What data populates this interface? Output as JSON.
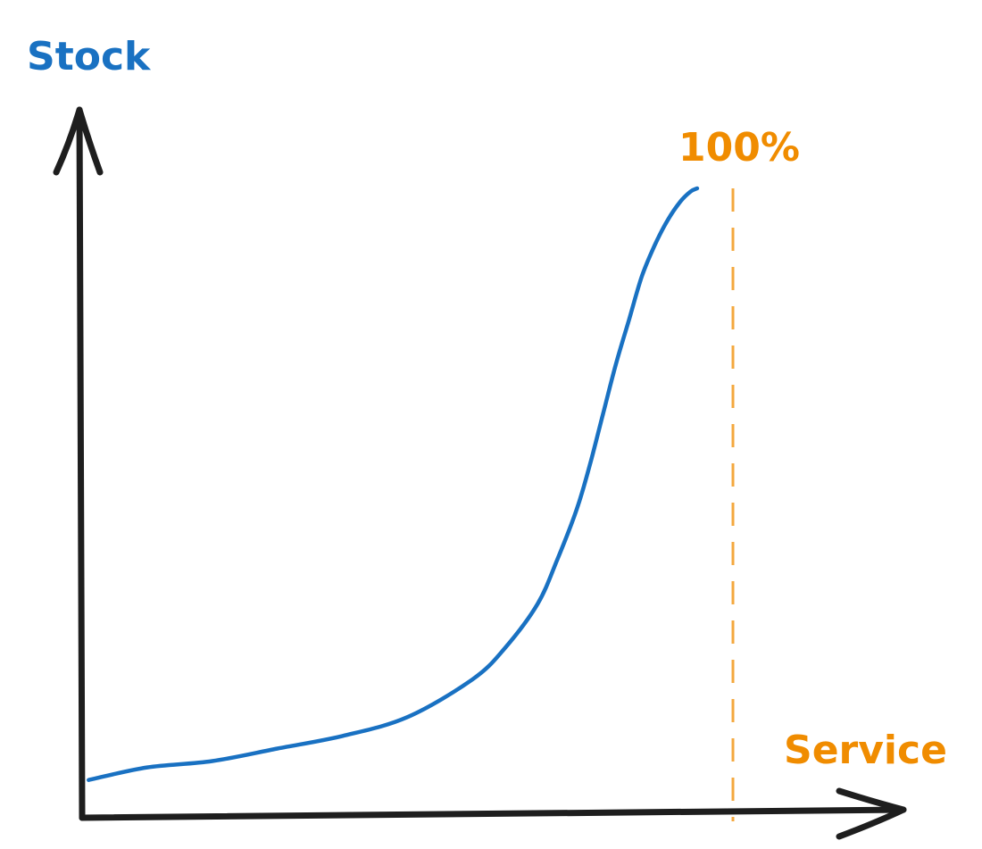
{
  "chart_data": {
    "type": "line",
    "title": "",
    "xlabel": "Service",
    "ylabel": "Stock",
    "xlim": [
      0,
      1.1
    ],
    "ylim": [
      0,
      1.1
    ],
    "grid": false,
    "legend": "none",
    "reference_line": {
      "x": 1.0,
      "label": "100%",
      "style": "dashed"
    },
    "series": [
      {
        "x": [
          0.01,
          0.1,
          0.2,
          0.3,
          0.4,
          0.5,
          0.6,
          0.65,
          0.7,
          0.73,
          0.76,
          0.78,
          0.8,
          0.82,
          0.84,
          0.86,
          0.88,
          0.9,
          0.92,
          0.935,
          0.945
        ],
        "values": [
          0.06,
          0.08,
          0.09,
          0.11,
          0.13,
          0.16,
          0.22,
          0.27,
          0.34,
          0.41,
          0.49,
          0.56,
          0.64,
          0.72,
          0.79,
          0.86,
          0.91,
          0.95,
          0.98,
          0.995,
          1.0
        ]
      }
    ],
    "colors": {
      "series": "#1971c2",
      "reference": "#f08c00",
      "reference_line": "#f4a83e",
      "axes": "#1e1e1e",
      "ylabel": "#1971c2",
      "xlabel": "#f08c00"
    }
  }
}
